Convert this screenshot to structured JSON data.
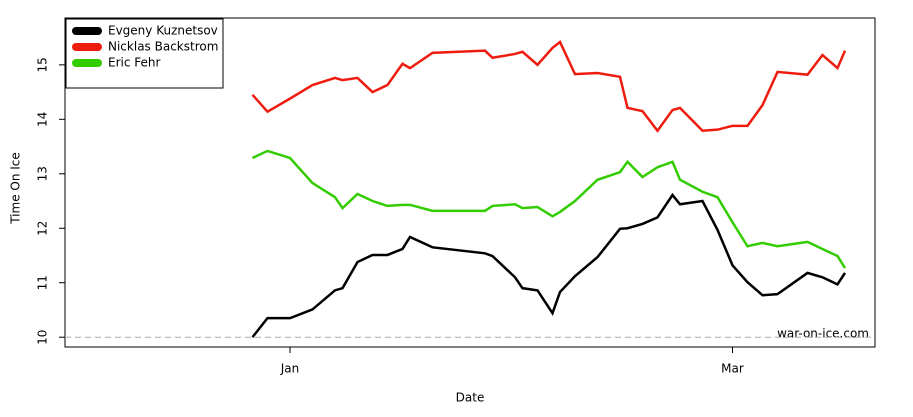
{
  "chart_data": {
    "type": "line",
    "xlabel": "Date",
    "ylabel": "Time On Ice",
    "annotation": "war-on-ice.com",
    "x": [
      -5,
      -3,
      0,
      3,
      6,
      7,
      9,
      11,
      13,
      15,
      16,
      19,
      26,
      27,
      30,
      31,
      33,
      35,
      36,
      38,
      41,
      44,
      45,
      47,
      49,
      51,
      52,
      55,
      57,
      59,
      61,
      63,
      65,
      69,
      71,
      73,
      74
    ],
    "series": [
      {
        "name": "Evgeny Kuznetsov",
        "color": "#000000",
        "values": [
          10.0,
          10.35,
          10.35,
          10.51,
          10.86,
          10.9,
          11.38,
          11.51,
          11.51,
          11.62,
          11.84,
          11.65,
          11.54,
          11.49,
          11.1,
          10.9,
          10.86,
          10.44,
          10.83,
          11.12,
          11.47,
          11.99,
          12.0,
          12.08,
          12.2,
          12.61,
          12.44,
          12.5,
          11.97,
          11.32,
          11.01,
          10.77,
          10.79,
          11.18,
          11.1,
          10.97,
          11.18
        ]
      },
      {
        "name": "Nicklas Backstrom",
        "color": "#ee1c0e",
        "values": [
          14.45,
          14.14,
          14.38,
          14.63,
          14.76,
          14.72,
          14.76,
          14.5,
          14.63,
          15.02,
          14.94,
          15.22,
          15.26,
          15.13,
          15.2,
          15.24,
          15.0,
          15.31,
          15.42,
          14.83,
          14.85,
          14.78,
          14.21,
          14.15,
          13.79,
          14.17,
          14.21,
          13.79,
          13.81,
          13.88,
          13.88,
          14.26,
          14.87,
          14.82,
          15.18,
          14.94,
          15.26
        ]
      },
      {
        "name": "Eric Fehr",
        "color": "#33cc00",
        "values": [
          13.29,
          13.42,
          13.29,
          12.83,
          12.57,
          12.37,
          12.63,
          12.5,
          12.41,
          12.43,
          12.43,
          12.32,
          12.32,
          12.41,
          12.44,
          12.37,
          12.39,
          12.22,
          12.3,
          12.5,
          12.89,
          13.03,
          13.22,
          12.94,
          13.12,
          13.22,
          12.89,
          12.67,
          12.57,
          12.11,
          11.67,
          11.73,
          11.67,
          11.75,
          11.62,
          11.49,
          11.27
        ]
      }
    ],
    "reference_line": 10,
    "xlim": [
      -30,
      78
    ],
    "xticks": [
      {
        "value": 0,
        "label": "Jan"
      },
      {
        "value": 59,
        "label": "Mar"
      }
    ],
    "ylim": [
      9.82,
      15.86
    ],
    "yticks": [
      10,
      11,
      12,
      13,
      14,
      15
    ],
    "legend": "top-left"
  }
}
